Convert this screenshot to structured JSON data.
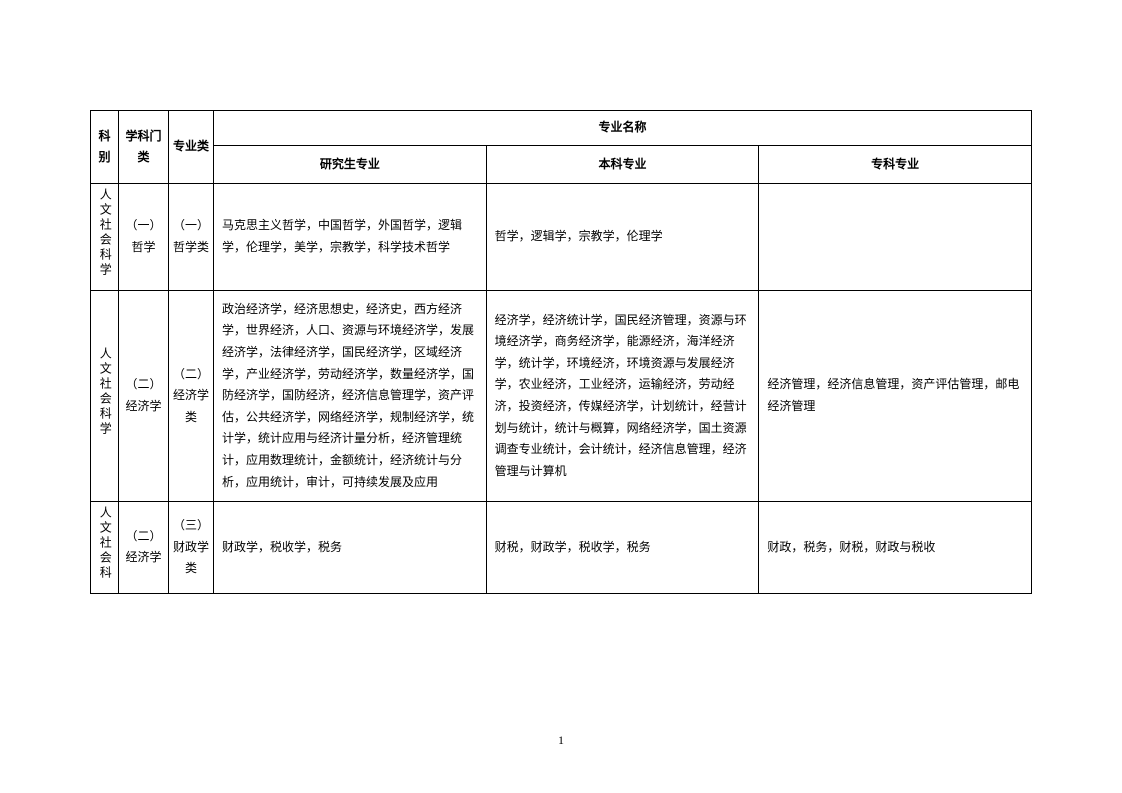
{
  "headers": {
    "kebie": "科别",
    "menlei": "学科门类",
    "zhuanyelei": "专业类",
    "mingcheng": "专业名称",
    "graduate": "研究生专业",
    "undergrad": "本科专业",
    "junior": "专科专业"
  },
  "rows": [
    {
      "kebie": "人文社会科学",
      "menlei": "（一）哲学",
      "zhuanyelei": "（一）哲学类",
      "graduate": "马克思主义哲学，中国哲学，外国哲学，逻辑学，伦理学，美学，宗教学，科学技术哲学",
      "undergrad": "哲学，逻辑学，宗教学，伦理学",
      "junior": ""
    },
    {
      "kebie": "人文社会科学",
      "menlei": "（二）经济学",
      "zhuanyelei": "（二）经济学类",
      "graduate": "政治经济学，经济思想史，经济史，西方经济学，世界经济，人口、资源与环境经济学，发展经济学，法律经济学，国民经济学，区域经济学，产业经济学，劳动经济学，数量经济学，国防经济学，国防经济，经济信息管理学，资产评估，公共经济学，网络经济学，规制经济学，统计学，统计应用与经济计量分析，经济管理统计，应用数理统计，金额统计，经济统计与分析，应用统计，审计，可持续发展及应用",
      "undergrad": "经济学，经济统计学，国民经济管理，资源与环境经济学，商务经济学，能源经济，海洋经济学，统计学，环境经济，环境资源与发展经济学，农业经济，工业经济，运输经济，劳动经济，投资经济，传媒经济学，计划统计，经营计划与统计，统计与概算，网络经济学，国土资源调查专业统计，会计统计，经济信息管理，经济管理与计算机",
      "junior": "经济管理，经济信息管理，资产评估管理，邮电经济管理"
    },
    {
      "kebie": "人文社会科",
      "menlei": "（二）经济学",
      "zhuanyelei": "（三）财政学类",
      "graduate": "财政学，税收学，税务",
      "undergrad": "财税，财政学，税收学，税务",
      "junior": "财政，税务，财税，财政与税收"
    }
  ],
  "page_number": "1",
  "styles": {
    "font_family": "SimSun",
    "font_size_pt": 12,
    "border_color": "#000000",
    "background_color": "#ffffff",
    "text_color": "#000000",
    "line_height": 1.8
  }
}
